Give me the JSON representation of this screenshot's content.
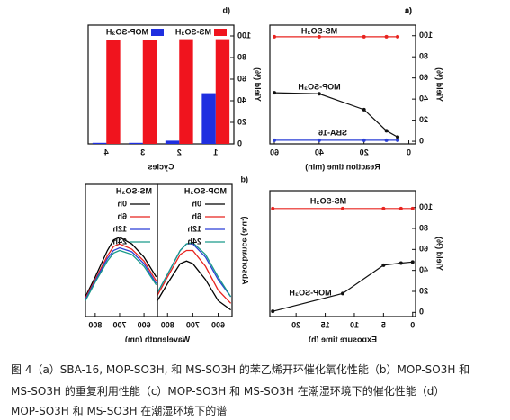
{
  "chart_data": [
    {
      "type": "line",
      "panel": "(a",
      "xlabel": "Reaction time (min)",
      "ylabel": "Yield (%)",
      "x": [
        5,
        10,
        20,
        40,
        60
      ],
      "xlim": [
        -3,
        62
      ],
      "xticks": [
        0,
        20,
        40,
        60
      ],
      "ylim": [
        -2.5,
        110
      ],
      "yticks": [
        0,
        20,
        40,
        60,
        80,
        100
      ],
      "series": [
        {
          "name": "MS-SO₃H",
          "color": "#e8231f",
          "values": [
            99,
            99,
            99,
            99,
            99
          ]
        },
        {
          "name": "MOP-SO₃H",
          "color": "#111111",
          "values": [
            4,
            10,
            30,
            45,
            46
          ]
        },
        {
          "name": "SBA-16",
          "color": "#2a3fd6",
          "values": [
            1,
            1,
            1,
            1,
            1
          ]
        }
      ]
    },
    {
      "type": "bar",
      "panel": "(b",
      "xlabel": "Cycles",
      "ylabel": "Yield (%)",
      "categories": [
        "1",
        "2",
        "3",
        "4"
      ],
      "ylim": [
        0,
        110
      ],
      "yticks": [
        0,
        20,
        40,
        60,
        80,
        100
      ],
      "series": [
        {
          "name": "MS-SO₃H",
          "color": "#f0141e",
          "values": [
            97,
            97,
            96,
            96
          ]
        },
        {
          "name": "MOP-SO₃H",
          "color": "#1f2fe0",
          "values": [
            47,
            3,
            1,
            1
          ]
        }
      ]
    },
    {
      "type": "line",
      "panel": "(c",
      "xlabel": "Exposure time (h)",
      "ylabel": "Yield (%)",
      "x": [
        0,
        2,
        5,
        12,
        24
      ],
      "xlim": [
        -0.5,
        24.5
      ],
      "xticks": [
        0,
        5,
        10,
        15,
        20
      ],
      "ylim": [
        -4,
        116
      ],
      "yticks": [
        0,
        20,
        40,
        60,
        80,
        100
      ],
      "series": [
        {
          "name": "MS-SO₃H",
          "color": "#e8231f",
          "values": [
            99,
            99,
            99,
            99,
            99
          ]
        },
        {
          "name": "MOP-SO₃H",
          "color": "#111111",
          "values": [
            48,
            47,
            45,
            18,
            1
          ]
        }
      ]
    },
    {
      "type": "spectra",
      "panel": "(d",
      "xlabel": "Wavelength (nm)",
      "ylabel": "Absorbance (a.u.)",
      "x": [
        550,
        600,
        650,
        700,
        725,
        750,
        800,
        840
      ],
      "xlim": [
        545,
        840
      ],
      "xticks": [
        600,
        700,
        800
      ],
      "ylim": [
        0,
        1
      ],
      "subpanels": [
        {
          "title": "MOP-SO₃H",
          "series": [
            {
              "name": "0h",
              "color": "#000000",
              "values": [
                0.05,
                0.12,
                0.28,
                0.4,
                0.42,
                0.4,
                0.25,
                0.12
              ]
            },
            {
              "name": "6h",
              "color": "#e8231f",
              "values": [
                0.1,
                0.2,
                0.38,
                0.5,
                0.5,
                0.47,
                0.3,
                0.16
              ]
            },
            {
              "name": "12h",
              "color": "#2a3fd6",
              "values": [
                0.15,
                0.28,
                0.45,
                0.55,
                0.55,
                0.5,
                0.32,
                0.18
              ]
            },
            {
              "name": "24h",
              "color": "#1a9a8a",
              "values": [
                0.15,
                0.3,
                0.47,
                0.56,
                0.55,
                0.5,
                0.32,
                0.18
              ]
            }
          ]
        },
        {
          "title": "MS-SO₃H",
          "series": [
            {
              "name": "0h",
              "color": "#000000",
              "values": [
                0.3,
                0.45,
                0.55,
                0.6,
                0.58,
                0.5,
                0.3,
                0.15
              ]
            },
            {
              "name": "6h",
              "color": "#e8231f",
              "values": [
                0.27,
                0.42,
                0.51,
                0.55,
                0.53,
                0.46,
                0.28,
                0.14
              ]
            },
            {
              "name": "12h",
              "color": "#2a3fd6",
              "values": [
                0.25,
                0.4,
                0.49,
                0.52,
                0.5,
                0.44,
                0.27,
                0.13
              ]
            },
            {
              "name": "24h",
              "color": "#1a9a8a",
              "values": [
                0.24,
                0.38,
                0.47,
                0.5,
                0.48,
                0.42,
                0.26,
                0.12
              ]
            }
          ]
        }
      ]
    }
  ],
  "caption": [
    "图 4（a）SBA-16, MOP-SO3H, 和 MS-SO3H 的苯乙烯开环催化氧化性能（b）MOP-SO3H 和",
    "MS-SO3H 的重复利用性能（c）MOP-SO3H 和 MS-SO3H 在潮湿环境下的催化性能（d）",
    "MOP-SO3H 和 MS-SO3H 在潮湿环境下的谱"
  ]
}
